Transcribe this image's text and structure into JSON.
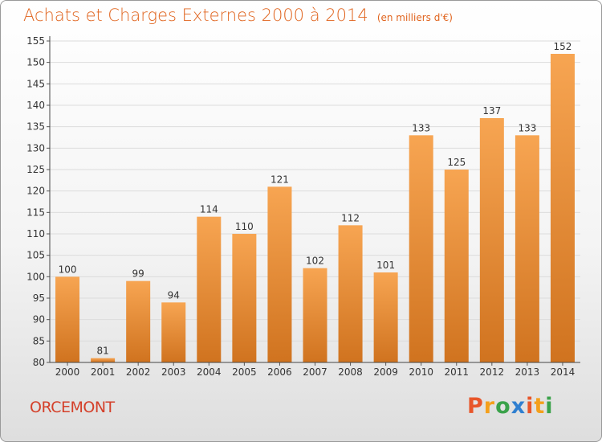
{
  "header": {
    "title": "Achats et Charges Externes 2000 à 2014",
    "unit": "(en milliers d'€)"
  },
  "place": "ORCEMONT",
  "logo": {
    "letters": [
      "P",
      "r",
      "o",
      "x",
      "i",
      "t",
      "i"
    ],
    "colors": [
      "#e8562a",
      "#f4a01c",
      "#3aa24a",
      "#2f7fd0",
      "#e8562a",
      "#f4a01c",
      "#3aa24a"
    ]
  },
  "colors": {
    "bar_top": "#f7a552",
    "bar_bottom": "#d0731f",
    "title": "#e0641e",
    "place": "#d4402a"
  },
  "chart_data": {
    "type": "bar",
    "categories": [
      "2000",
      "2001",
      "2002",
      "2003",
      "2004",
      "2005",
      "2006",
      "2007",
      "2008",
      "2009",
      "2010",
      "2011",
      "2012",
      "2013",
      "2014"
    ],
    "values": [
      100,
      81,
      99,
      94,
      114,
      110,
      121,
      102,
      112,
      101,
      133,
      125,
      137,
      133,
      152
    ],
    "ylim": [
      80,
      155
    ],
    "yticks": [
      80,
      85,
      90,
      95,
      100,
      105,
      110,
      115,
      120,
      125,
      130,
      135,
      140,
      145,
      150,
      155
    ],
    "grid": true,
    "data_labels": true
  }
}
